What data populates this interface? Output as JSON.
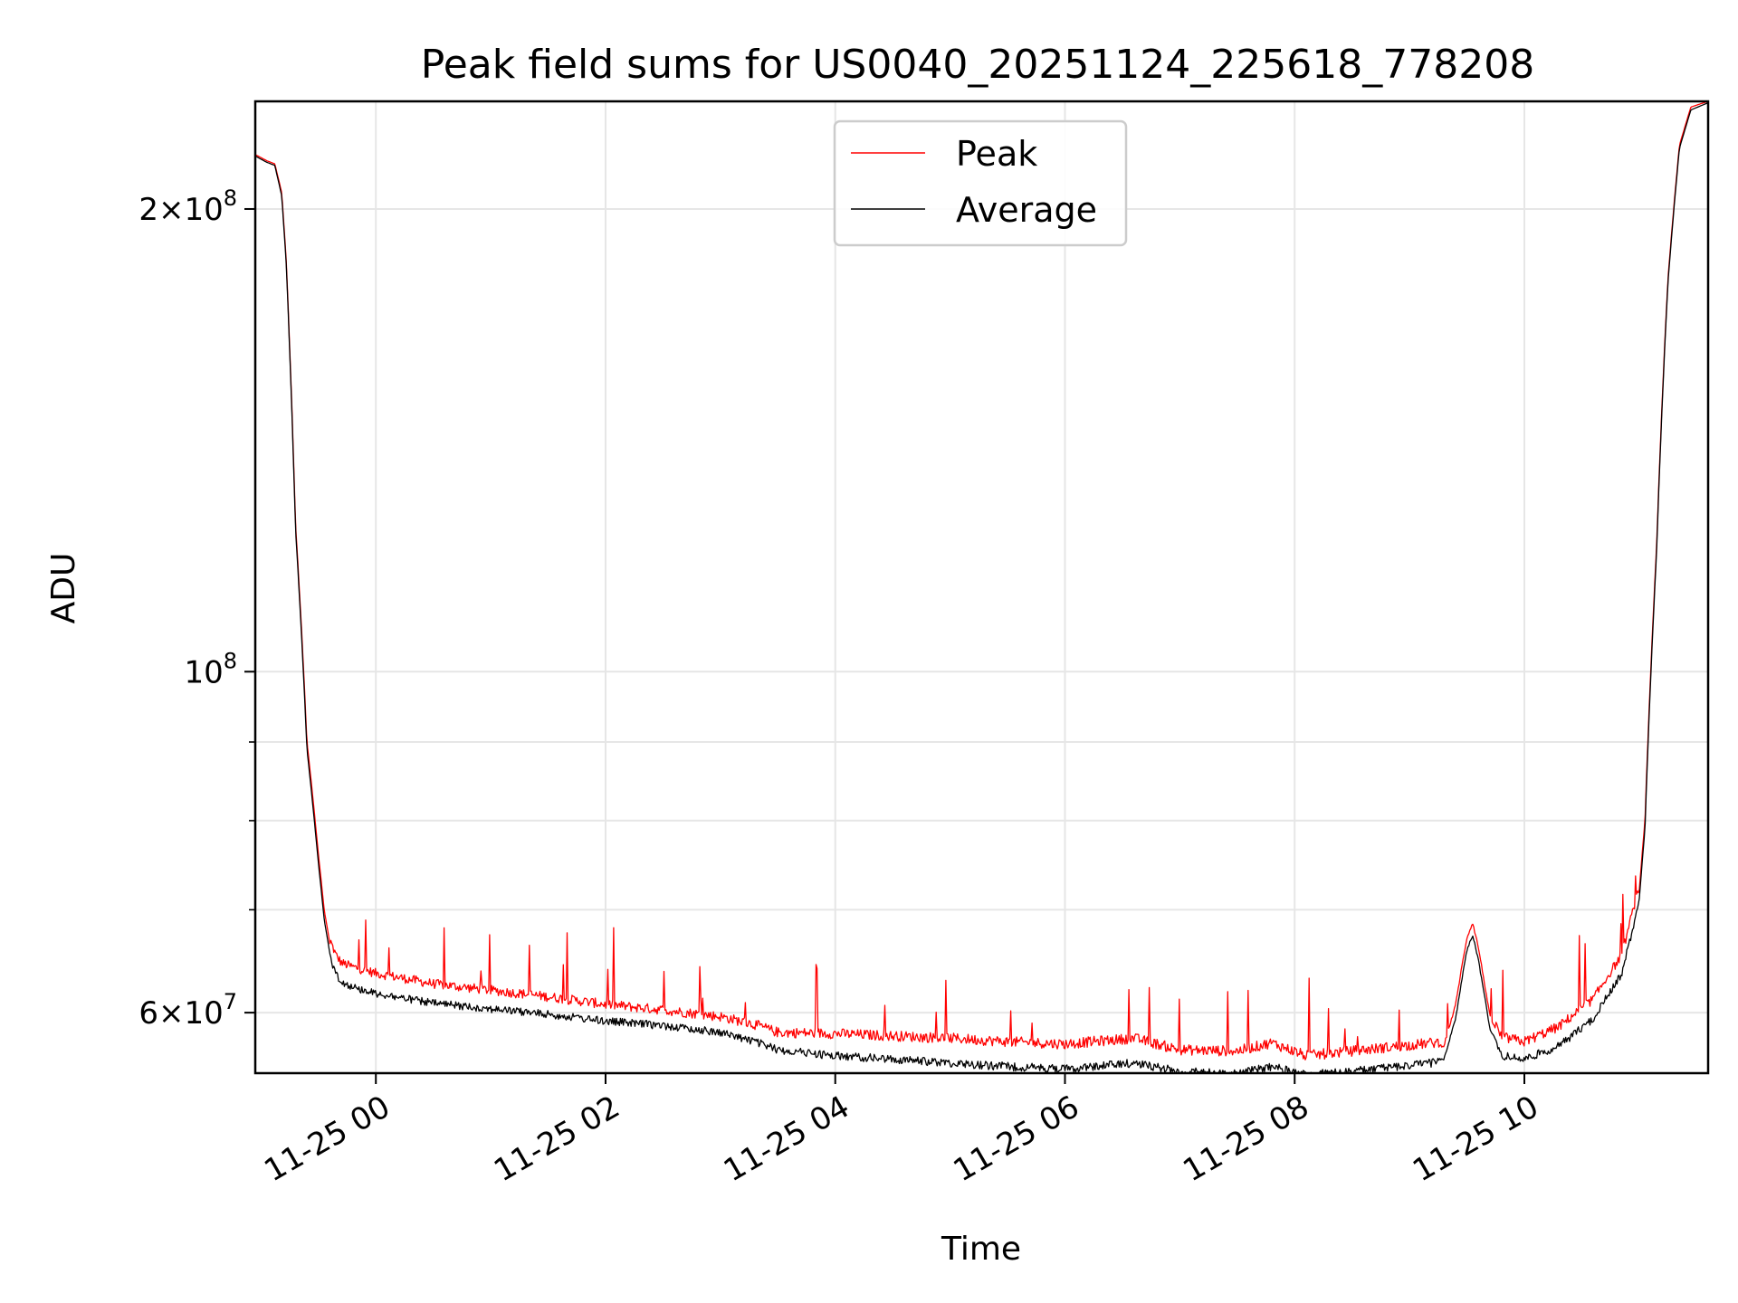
{
  "chart_data": {
    "type": "line",
    "title": "Peak field sums for US0040_20251124_225618_778208",
    "xlabel": "Time",
    "ylabel": "ADU",
    "y_scale": "log",
    "xlim_hours": [
      -1.05,
      11.6
    ],
    "ylim": [
      54800000,
      235000000
    ],
    "x_ticks": [
      {
        "hour": 0,
        "label": "11-25 00"
      },
      {
        "hour": 2,
        "label": "11-25 02"
      },
      {
        "hour": 4,
        "label": "11-25 04"
      },
      {
        "hour": 6,
        "label": "11-25 06"
      },
      {
        "hour": 8,
        "label": "11-25 08"
      },
      {
        "hour": 10,
        "label": "11-25 10"
      }
    ],
    "y_major_ticks": [
      {
        "value": 60000000,
        "base": "6×10",
        "exp": "7"
      },
      {
        "value": 100000000,
        "base": "10",
        "exp": "8"
      },
      {
        "value": 200000000,
        "base": "2×10",
        "exp": "8"
      }
    ],
    "y_minor_grid": [
      70000000,
      80000000,
      90000000
    ],
    "grid": true,
    "legend": {
      "position": "upper center"
    },
    "series": [
      {
        "name": "Peak",
        "color": "#ff0000",
        "x_hours": [
          -1.05,
          -0.95,
          -0.88,
          -0.82,
          -0.78,
          -0.7,
          -0.6,
          -0.5,
          -0.45,
          -0.4,
          -0.35,
          -0.3,
          -0.2,
          -0.1,
          0.0,
          0.5,
          1.0,
          1.5,
          2.0,
          2.5,
          3.0,
          3.3,
          3.5,
          4.0,
          4.5,
          5.0,
          5.5,
          6.0,
          6.6,
          7.0,
          7.5,
          7.8,
          8.1,
          8.5,
          9.0,
          9.3,
          9.4,
          9.5,
          9.55,
          9.6,
          9.7,
          9.8,
          10.0,
          10.3,
          10.6,
          10.85,
          11.0,
          11.05,
          11.15,
          11.25,
          11.35,
          11.45,
          11.6
        ],
        "values": [
          217000000,
          215000000,
          214000000,
          205000000,
          185000000,
          125000000,
          90000000,
          76000000,
          70000000,
          66500000,
          65000000,
          64200000,
          63800000,
          63500000,
          63200000,
          62200000,
          61600000,
          61000000,
          60300000,
          59800000,
          59200000,
          58500000,
          57800000,
          57700000,
          57500000,
          57300000,
          57000000,
          56800000,
          57300000,
          56300000,
          56200000,
          56900000,
          55800000,
          56200000,
          56700000,
          57000000,
          60500000,
          67000000,
          68500000,
          66000000,
          59500000,
          57400000,
          57000000,
          58300000,
          60800000,
          65000000,
          72000000,
          80000000,
          120000000,
          180000000,
          220000000,
          233000000,
          235000000
        ]
      },
      {
        "name": "Average",
        "color": "#000000",
        "x_hours": [
          -1.05,
          -0.95,
          -0.88,
          -0.82,
          -0.78,
          -0.7,
          -0.6,
          -0.5,
          -0.45,
          -0.4,
          -0.35,
          -0.3,
          -0.2,
          -0.1,
          0.0,
          0.5,
          1.0,
          1.5,
          2.0,
          2.5,
          3.0,
          3.3,
          3.5,
          4.0,
          4.5,
          5.0,
          5.5,
          6.0,
          6.6,
          7.0,
          7.5,
          7.8,
          8.1,
          8.5,
          9.0,
          9.3,
          9.4,
          9.5,
          9.55,
          9.6,
          9.7,
          9.8,
          10.0,
          10.3,
          10.6,
          10.85,
          11.0,
          11.05,
          11.15,
          11.25,
          11.35,
          11.45,
          11.6
        ],
        "values": [
          216500000,
          214500000,
          213500000,
          204000000,
          184000000,
          124000000,
          89000000,
          75000000,
          69000000,
          65500000,
          64000000,
          63200000,
          62700000,
          62400000,
          62100000,
          61200000,
          60700000,
          60200000,
          59600000,
          59200000,
          58600000,
          57800000,
          57100000,
          56600000,
          56300000,
          56000000,
          55700000,
          55500000,
          56000000,
          55300000,
          55100000,
          55700000,
          55000000,
          55300000,
          55800000,
          56100000,
          59500000,
          66000000,
          67500000,
          65000000,
          58700000,
          56600000,
          56300000,
          57400000,
          59800000,
          64000000,
          71000000,
          79000000,
          119000000,
          179000000,
          219000000,
          232000000,
          234500000
        ]
      }
    ]
  }
}
